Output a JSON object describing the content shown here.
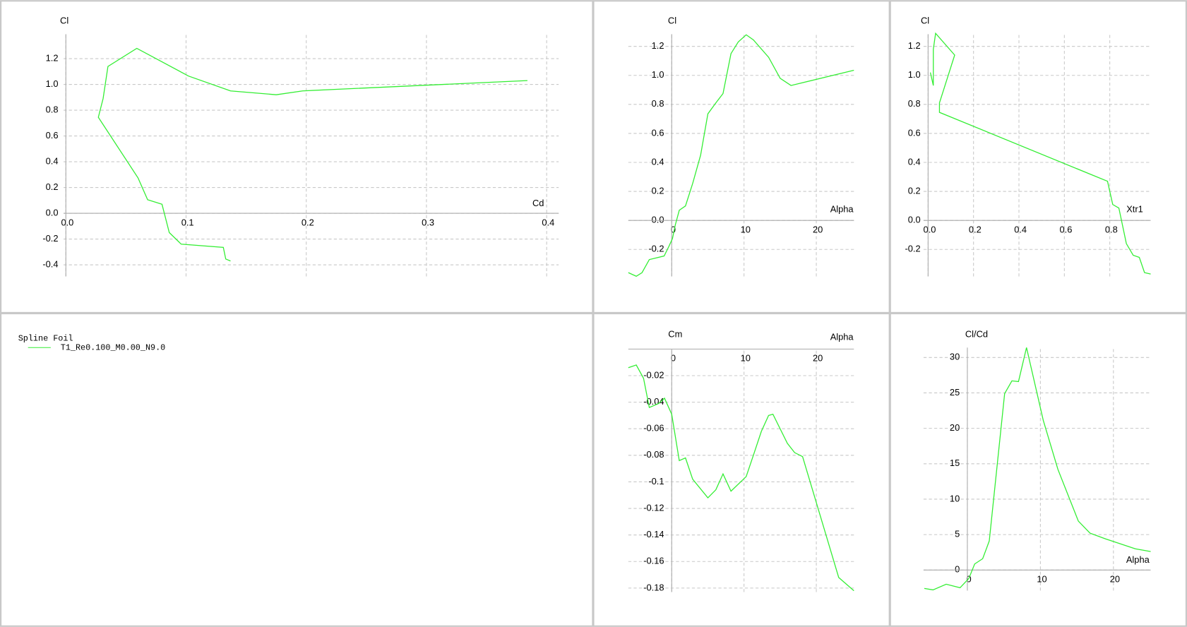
{
  "legend": {
    "title": "Spline Foil"
  },
  "chart_data": [
    {
      "type": "line",
      "x_label": "Cd",
      "y_label": "Cl",
      "x": [
        0.137,
        0.133,
        0.131,
        0.096,
        0.086,
        0.08,
        0.068,
        0.06,
        0.027,
        0.031,
        0.035,
        0.059,
        0.102,
        0.137,
        0.175,
        0.197,
        0.384
      ],
      "series": [
        {
          "name": "T1_Re0.100_M0.00_N9.0",
          "color": "#33ee33",
          "values": [
            -0.37,
            -0.355,
            -0.265,
            -0.24,
            -0.15,
            0.07,
            0.105,
            0.275,
            0.745,
            0.89,
            1.14,
            1.28,
            1.065,
            0.95,
            0.92,
            0.95,
            1.03
          ]
        }
      ],
      "xlim": [
        0,
        0.41
      ],
      "ylim": [
        -0.49,
        1.39
      ],
      "xticks": [
        {
          "value": 0,
          "label": "0.0"
        },
        0.1,
        0.2,
        0.3,
        0.4
      ],
      "yticks": [
        -0.4,
        -0.2,
        {
          "value": 0,
          "label": "0.0"
        },
        0.2,
        0.4,
        0.6,
        0.8,
        {
          "value": 1,
          "label": "1.0"
        },
        1.2
      ],
      "grid": true
    },
    {
      "type": "line",
      "x_label": "Alpha",
      "y_label": "Cl",
      "x": [
        -6,
        -4.9,
        -4.1,
        -3.1,
        -1.05,
        -0.4,
        0.1,
        0.5,
        1.05,
        1.9,
        2.9,
        4.0,
        5.0,
        6.1,
        7.1,
        8.2,
        9.2,
        10.3,
        11.3,
        13.4,
        15,
        16.5,
        25.2
      ],
      "series": [
        {
          "color": "#33ee33",
          "values": [
            -0.36,
            -0.385,
            -0.36,
            -0.27,
            -0.245,
            -0.18,
            -0.125,
            -0.03,
            0.07,
            0.1,
            0.255,
            0.45,
            0.735,
            0.81,
            0.875,
            1.15,
            1.23,
            1.28,
            1.245,
            1.125,
            0.98,
            0.93,
            1.035
          ]
        }
      ],
      "xlim": [
        -6,
        25.2
      ],
      "ylim": [
        -0.386,
        1.284
      ],
      "xticks": [
        0,
        10,
        20
      ],
      "yticks": [
        -0.2,
        {
          "value": 0,
          "label": "0.0"
        },
        0.2,
        0.4,
        0.6,
        0.8,
        {
          "value": 1,
          "label": "1.0"
        },
        1.2
      ],
      "grid": true
    },
    {
      "type": "line",
      "x_label": "Xtr1",
      "y_label": "Cl",
      "x": [
        0.98,
        0.953,
        0.93,
        0.903,
        0.873,
        0.84,
        0.813,
        0.79,
        0.05,
        0.05,
        0.117,
        0.033,
        0.023,
        0.023,
        0.01
      ],
      "series": [
        {
          "color": "#33ee33",
          "values": [
            -0.37,
            -0.36,
            -0.255,
            -0.24,
            -0.16,
            0.085,
            0.11,
            0.27,
            0.745,
            0.81,
            1.14,
            1.29,
            1.18,
            0.93,
            1.02
          ]
        }
      ],
      "xlim": [
        -0.02,
        0.98
      ],
      "ylim": [
        -0.386,
        1.284
      ],
      "xticks": [
        {
          "value": 0,
          "label": "0.0"
        },
        0.2,
        0.4,
        0.6,
        0.8
      ],
      "yticks": [
        -0.2,
        {
          "value": 0,
          "label": "0.0"
        },
        0.2,
        0.4,
        0.6,
        0.8,
        {
          "value": 1,
          "label": "1.0"
        },
        1.2
      ],
      "grid": true
    },
    {
      "type": "line",
      "x_label": "Alpha",
      "y_label": "Cm",
      "x": [
        -6,
        -4.9,
        -3.9,
        -3.1,
        -1.8,
        -1,
        0,
        1.05,
        1.9,
        2.9,
        5,
        6.1,
        7.1,
        8.2,
        10.3,
        11.3,
        12.4,
        13.4,
        14,
        16,
        17,
        18.1,
        23.1,
        25.2
      ],
      "series": [
        {
          "color": "#33ee33",
          "values": [
            -0.014,
            -0.012,
            -0.022,
            -0.044,
            -0.041,
            -0.037,
            -0.049,
            -0.084,
            -0.082,
            -0.098,
            -0.112,
            -0.106,
            -0.094,
            -0.107,
            -0.096,
            -0.08,
            -0.062,
            -0.05,
            -0.049,
            -0.071,
            -0.078,
            -0.081,
            -0.172,
            -0.182
          ]
        }
      ],
      "xlim": [
        -6,
        25.2
      ],
      "ylim": [
        -0.183,
        0
      ],
      "xticks": [
        0,
        10,
        20
      ],
      "yticks": [
        -0.02,
        -0.04,
        -0.06,
        -0.08,
        -0.1,
        -0.12,
        -0.14,
        -0.16,
        -0.18
      ],
      "grid": true
    },
    {
      "type": "line",
      "x_label": "Alpha",
      "y_label": "Cl/Cd",
      "x": [
        -5.9,
        -4.7,
        -2.9,
        -1.0,
        0.2,
        1.0,
        2.1,
        3.0,
        5.1,
        6.1,
        7.0,
        8.1,
        10.4,
        12.4,
        15.2,
        16.8,
        18.9,
        23,
        25.1
      ],
      "series": [
        {
          "color": "#33ee33",
          "values": [
            -2.6,
            -2.8,
            -2.0,
            -2.5,
            -1.2,
            0.85,
            1.6,
            4.1,
            24.9,
            26.7,
            26.6,
            31.4,
            21.1,
            14.2,
            6.9,
            5.2,
            4.4,
            3.0,
            2.6
          ]
        }
      ],
      "xlim": [
        -6,
        25.1
      ],
      "ylim": [
        -2.9,
        31.4
      ],
      "xticks": [
        0,
        10,
        20
      ],
      "yticks": [
        0,
        5,
        10,
        15,
        20,
        25,
        30
      ],
      "grid": true
    }
  ]
}
